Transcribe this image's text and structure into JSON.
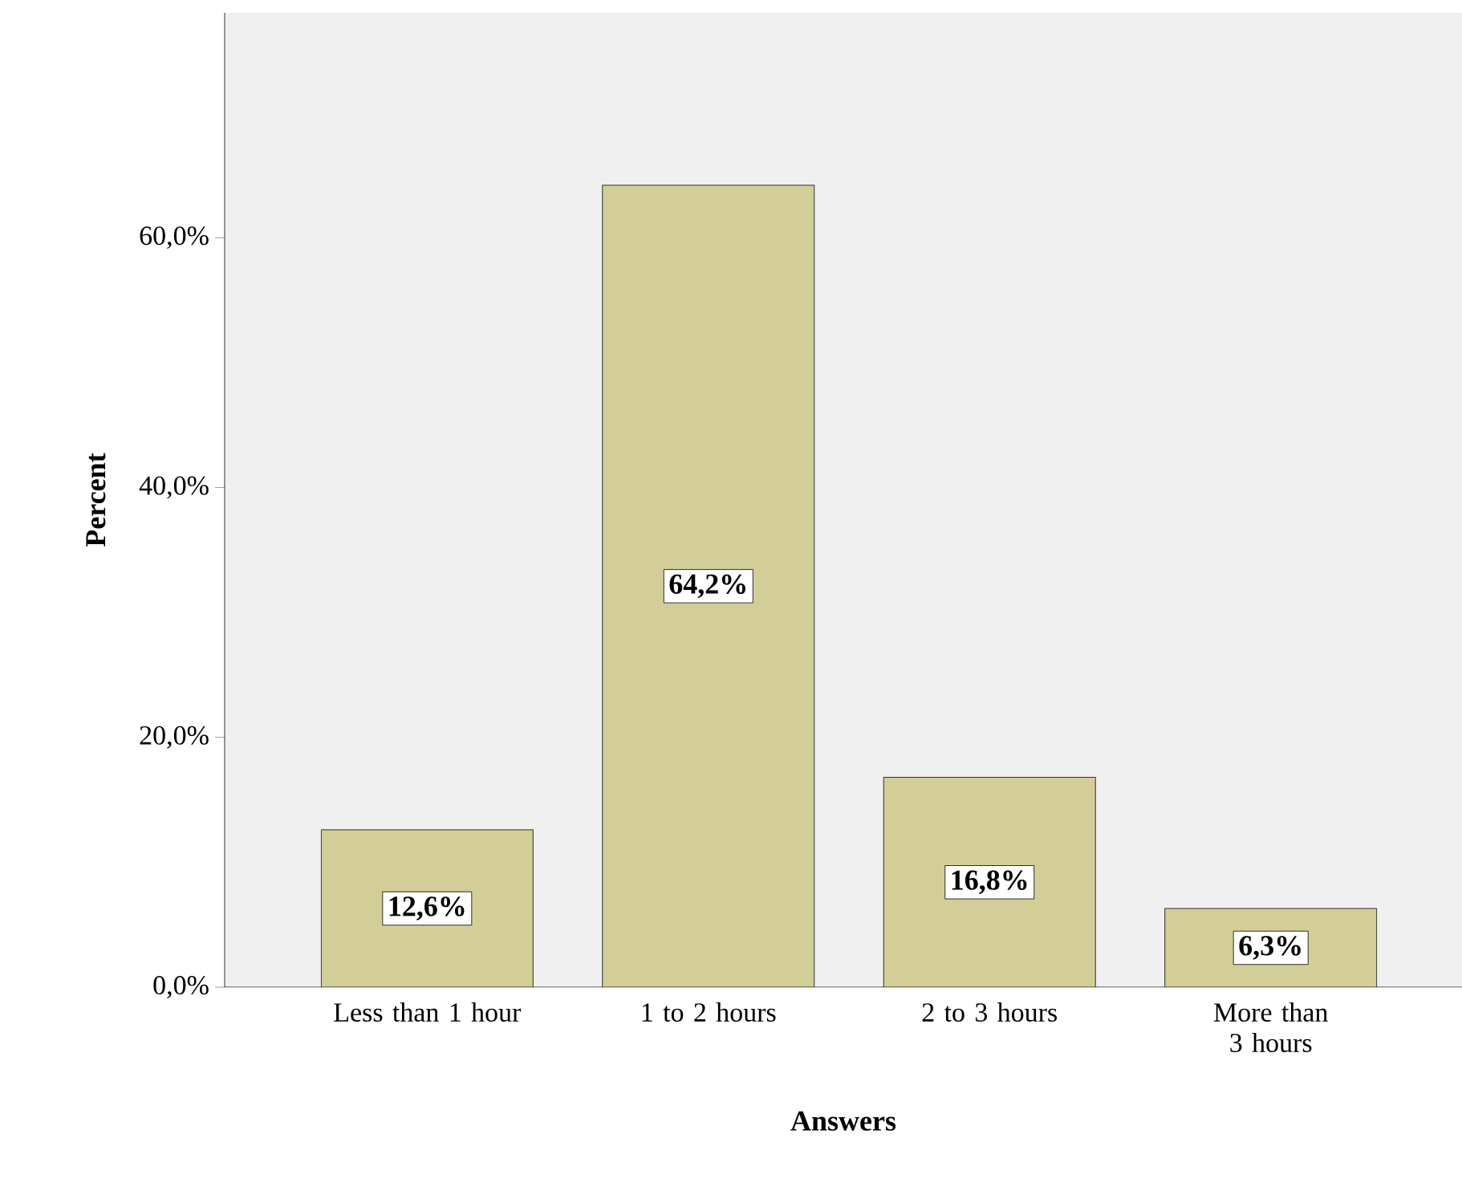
{
  "chart_data": {
    "type": "bar",
    "xlabel": "Answers",
    "ylabel": "Percent",
    "categories": [
      "Less than 1 hour",
      "1 to 2 hours",
      "2 to 3 hours",
      "More than 3 hours"
    ],
    "values": [
      12.6,
      64.2,
      16.8,
      6.3
    ],
    "value_labels": [
      "12,6%",
      "64,2%",
      "16,8%",
      "6,3%"
    ],
    "color": "#d3ce97",
    "ylim": [
      0,
      78
    ],
    "yticks": [
      {
        "value": 0,
        "label": "0,0%"
      },
      {
        "value": 20,
        "label": "20,0%"
      },
      {
        "value": 40,
        "label": "40,0%"
      },
      {
        "value": 60,
        "label": "60,0%"
      }
    ],
    "grid": false
  }
}
